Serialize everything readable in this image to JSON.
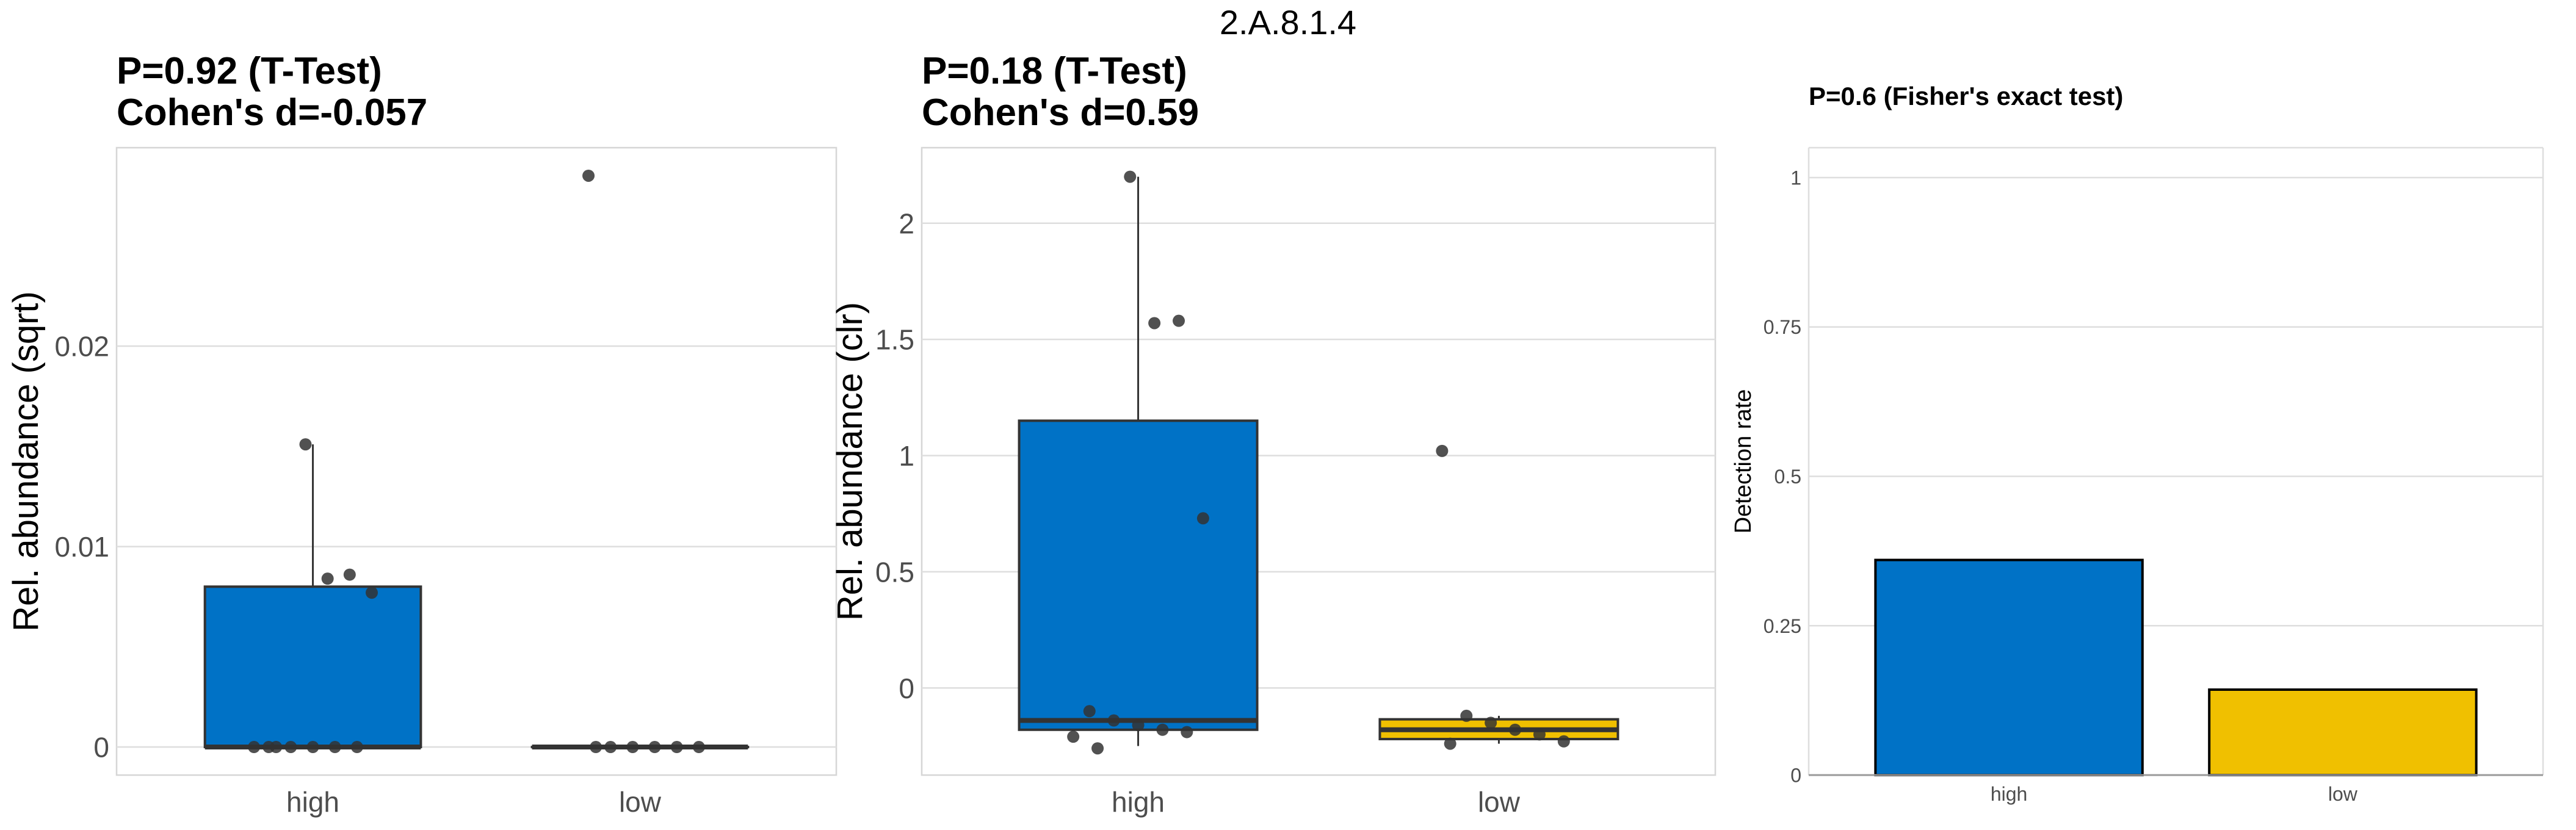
{
  "title": "2.A.8.1.4",
  "colors": {
    "high": "#0072C6",
    "low": "#F0C000",
    "point": "#333333",
    "outline": "#333333"
  },
  "chart_data": [
    {
      "type": "box",
      "title_lines": [
        "P=0.92 (T-Test)",
        "Cohen's d=-0.057"
      ],
      "ylabel": "Rel. abundance (sqrt)",
      "categories": [
        "high",
        "low"
      ],
      "ylim": [
        -0.0014,
        0.0299
      ],
      "yticks": [
        0,
        0.01,
        0.02
      ],
      "ytick_labels": [
        "0",
        "0.01",
        "0.02"
      ],
      "grid": true,
      "boxes": [
        {
          "category": "high",
          "q1": 0,
          "median": 0,
          "q3": 0.008,
          "whisker_low": 0,
          "whisker_high": 0.0151
        },
        {
          "category": "low",
          "q1": 0,
          "median": 0,
          "q3": 0,
          "whisker_low": 0,
          "whisker_high": 0
        }
      ],
      "points": [
        {
          "category": "high",
          "values": [
            0.0151,
            0.0084,
            0.0086,
            0.0077,
            0,
            0,
            0,
            0,
            0,
            0,
            0
          ]
        },
        {
          "category": "low",
          "values": [
            0.0285,
            0,
            0,
            0,
            0,
            0,
            0
          ]
        }
      ]
    },
    {
      "type": "box",
      "title_lines": [
        "P=0.18 (T-Test)",
        "Cohen's d=0.59"
      ],
      "ylabel": "Rel. abundance (clr)",
      "categories": [
        "high",
        "low"
      ],
      "ylim": [
        -0.375,
        2.325
      ],
      "yticks": [
        0,
        0.5,
        1,
        1.5,
        2
      ],
      "ytick_labels": [
        "0",
        "0.5",
        "1",
        "1.5",
        "2"
      ],
      "grid": true,
      "boxes": [
        {
          "category": "high",
          "q1": -0.18,
          "median": -0.14,
          "q3": 1.15,
          "whisker_low": -0.25,
          "whisker_high": 2.2
        },
        {
          "category": "low",
          "q1": -0.22,
          "median": -0.18,
          "q3": -0.135,
          "whisker_low": -0.24,
          "whisker_high": -0.12
        }
      ],
      "points": [
        {
          "category": "high",
          "values": [
            2.2,
            1.57,
            1.58,
            0.73,
            -0.1,
            -0.14,
            -0.16,
            -0.18,
            -0.19,
            -0.21,
            -0.26
          ]
        },
        {
          "category": "low",
          "values": [
            1.02,
            -0.12,
            -0.15,
            -0.18,
            -0.2,
            -0.23,
            -0.24
          ]
        }
      ]
    },
    {
      "type": "bar",
      "title_lines": [
        "P=0.6 (Fisher's exact test)"
      ],
      "ylabel": "Detection rate",
      "categories": [
        "high",
        "low"
      ],
      "values": [
        0.36,
        0.143
      ],
      "ylim": [
        0,
        1.05
      ],
      "yticks": [
        0,
        0.25,
        0.5,
        0.75,
        1
      ],
      "ytick_labels": [
        "0",
        "0.25",
        "0.5",
        "0.75",
        "1"
      ],
      "grid": true
    }
  ]
}
